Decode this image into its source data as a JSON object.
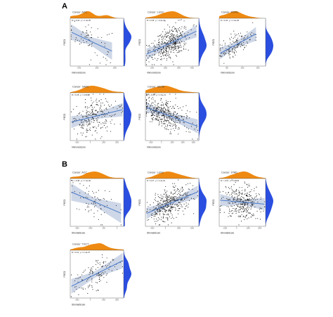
{
  "panels": [
    {
      "letter": "A"
    },
    {
      "letter": "B"
    }
  ],
  "colors": {
    "x_density": "#ee8a12",
    "y_density": "#2a4ee0",
    "fit_line": "#3b6fc6",
    "ci_band": "#c5d0e3",
    "points": "#111111"
  },
  "chart_data": [
    {
      "type": "scatter",
      "group": "A",
      "title": "Cancer: ACC",
      "xlabel": "ImmuneScore",
      "ylabel": "PIEZ1",
      "trend": "negative",
      "n": 70,
      "spread": 0.2,
      "x_center": 0.35,
      "x_sd": 0.22,
      "stat_text": "R = -0.42 , p = 1.4e-05",
      "xticks": [
        "1000",
        "2000",
        "3000"
      ],
      "legend_position": "none",
      "grid": false
    },
    {
      "type": "scatter",
      "group": "A",
      "title": "Cancer: LUSC",
      "xlabel": "ImmuneScore",
      "ylabel": "PIEZ1",
      "trend": "positive",
      "n": 420,
      "spread": 0.16,
      "x_center": 0.45,
      "x_sd": 0.18,
      "stat_text": "R = 0.36 , p < 2.2e-16",
      "xticks": [
        "1000",
        "2000",
        "3000",
        "4000"
      ],
      "legend_position": "none",
      "grid": false
    },
    {
      "type": "scatter",
      "group": "A",
      "title": "Cancer: PCPG",
      "xlabel": "ImmuneScore",
      "ylabel": "PIEZ1",
      "trend": "positive",
      "n": 150,
      "spread": 0.12,
      "x_center": 0.35,
      "x_sd": 0.2,
      "stat_text": "R = 0.34 , p = 1.6e-05",
      "xticks": [
        "500",
        "1000",
        "1500"
      ],
      "legend_position": "none",
      "grid": false
    },
    {
      "type": "scatter",
      "group": "A",
      "title": "Cancer: SARC",
      "xlabel": "ImmuneScore",
      "ylabel": "PIEZ1",
      "trend": "weak-positive",
      "n": 260,
      "spread": 0.2,
      "x_center": 0.45,
      "x_sd": 0.2,
      "stat_text": "R = 0.18 , p = 0.0036",
      "xticks": [
        "-1000",
        "0",
        "1000",
        "2000"
      ],
      "legend_position": "none",
      "grid": false
    },
    {
      "type": "scatter",
      "group": "A",
      "title": "Cancer: SKCM",
      "xlabel": "ImmuneScore",
      "ylabel": "PIEZ1",
      "trend": "negative",
      "n": 420,
      "spread": 0.16,
      "x_center": 0.35,
      "x_sd": 0.22,
      "stat_text": "R = -0.33 , p = 1.5e-13",
      "xticks": [
        "-1000",
        "0",
        "1000",
        "2000",
        "3000"
      ],
      "legend_position": "none",
      "grid": false
    },
    {
      "type": "scatter",
      "group": "B",
      "title": "Cancer: ACC",
      "xlabel": "StromalScore",
      "ylabel": "PIEZ1",
      "trend": "negative",
      "n": 70,
      "spread": 0.2,
      "x_center": 0.4,
      "x_sd": 0.22,
      "stat_text": "R = -0.48 , p = 7.4e-06",
      "xticks": [
        "-1500",
        "-1000",
        "-500",
        "0"
      ],
      "legend_position": "none",
      "grid": false
    },
    {
      "type": "scatter",
      "group": "B",
      "title": "Cancer: LUSC",
      "xlabel": "StromalScore",
      "ylabel": "PIEZ1",
      "trend": "positive",
      "n": 420,
      "spread": 0.15,
      "x_center": 0.45,
      "x_sd": 0.18,
      "stat_text": "R = 0.27 , p = 1.2e-10",
      "xticks": [
        "-1000",
        "0",
        "1000",
        "2000"
      ],
      "legend_position": "none",
      "grid": false
    },
    {
      "type": "scatter",
      "group": "B",
      "title": "Cancer: STAD",
      "xlabel": "StromalScore",
      "ylabel": "PIEZ1",
      "trend": "weak-negative",
      "n": 330,
      "spread": 0.18,
      "x_center": 0.5,
      "x_sd": 0.2,
      "stat_text": "R = -0.15 , p = 0.0046",
      "xticks": [
        "-1000",
        "0",
        "1000",
        "2000"
      ],
      "legend_position": "none",
      "grid": false
    },
    {
      "type": "scatter",
      "group": "B",
      "title": "Cancer: TGCT",
      "xlabel": "StromalScore",
      "ylabel": "PIEZ1",
      "trend": "positive",
      "n": 130,
      "spread": 0.2,
      "x_center": 0.45,
      "x_sd": 0.2,
      "stat_text": "R = 0.41 , p = 1.4e-07",
      "xticks": [
        "-1000",
        "0",
        "1000",
        "2000"
      ],
      "legend_position": "none",
      "grid": false
    }
  ]
}
